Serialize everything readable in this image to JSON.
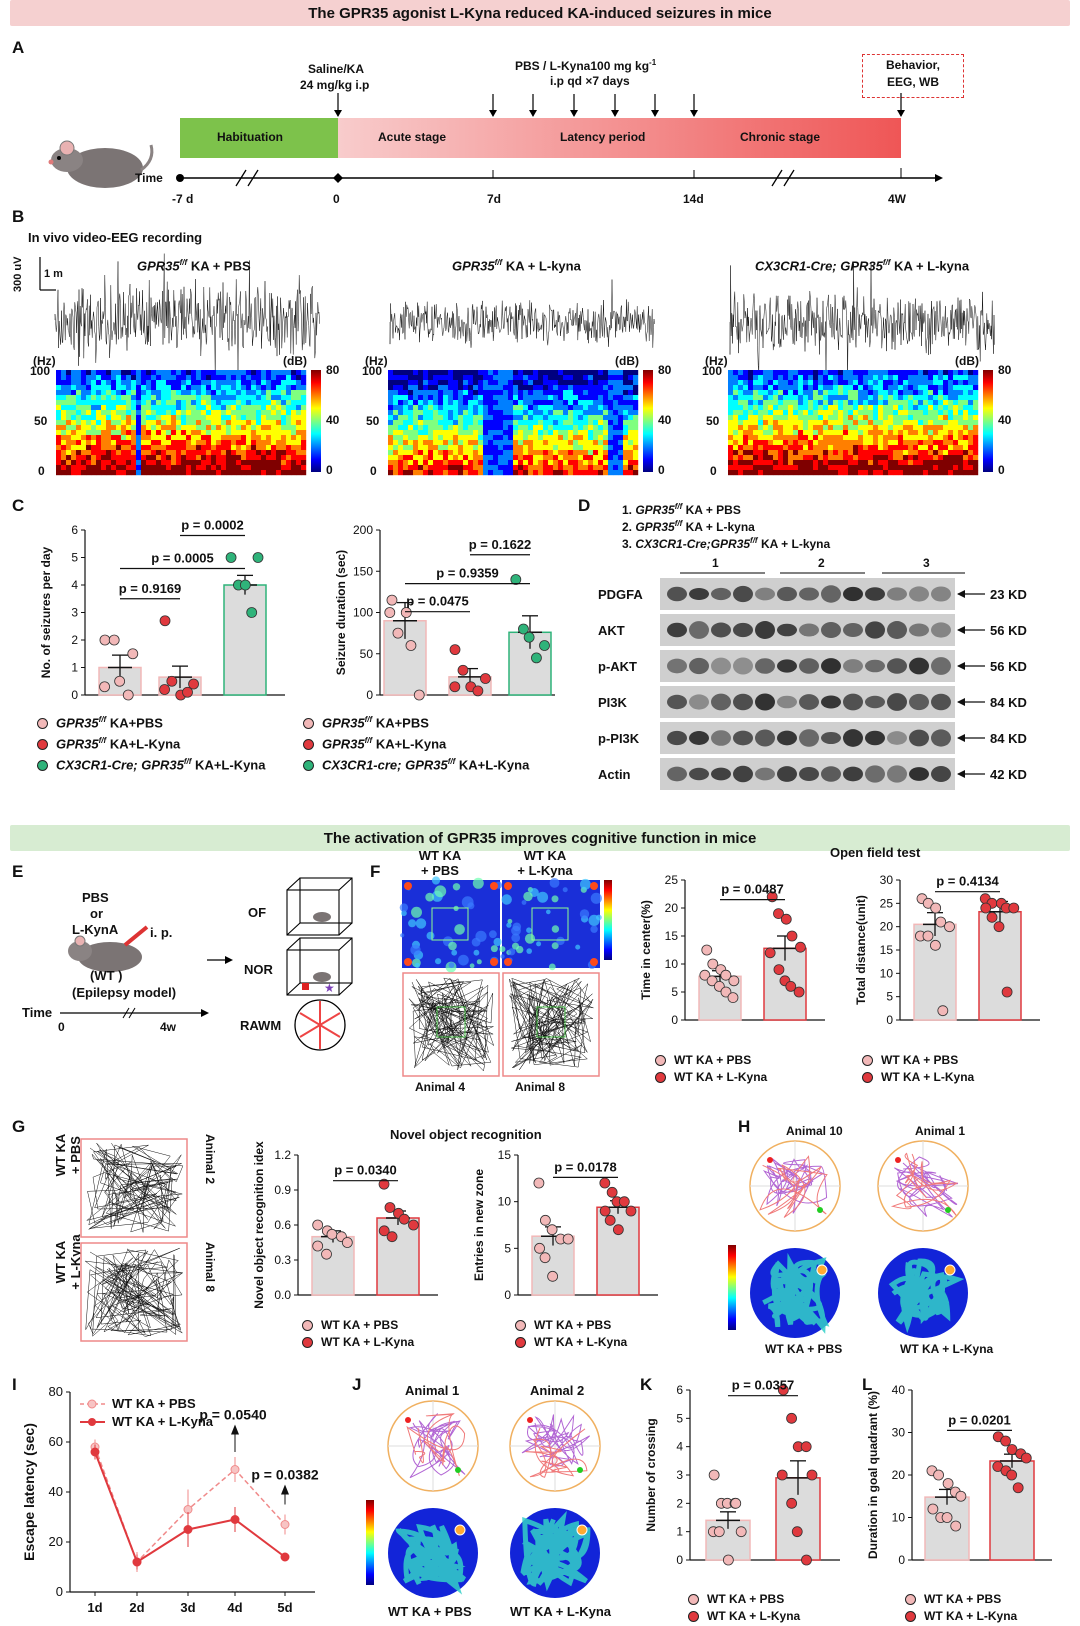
{
  "banners": {
    "top": "The GPR35 agonist L-Kyna reduced KA-induced seizures in mice",
    "middle": "The activation of GPR35 improves cognitive function in mice"
  },
  "panel_labels": [
    "A",
    "B",
    "C",
    "D",
    "E",
    "F",
    "G",
    "H",
    "I",
    "J",
    "K",
    "L"
  ],
  "panelA": {
    "saline_line1": "Saline/KA",
    "saline_line2": "24 mg/kg i.p",
    "pbs_line1": "PBS / L-Kyna100 mg kg",
    "pbs_sup": "-1",
    "pbs_line2": "i.p qd ×7 days",
    "behavior_line1": "Behavior,",
    "behavior_line2": "EEG, WB",
    "stages": [
      "Habituation",
      "Acute stage",
      "Latency period",
      "Chronic stage"
    ],
    "time_label": "Time",
    "ticks": [
      "-7 d",
      "0",
      "7d",
      "14d",
      "4W"
    ]
  },
  "panelB": {
    "title": "In vivo video-EEG recording",
    "scale_v": "300 uV",
    "scale_t": "1 m",
    "groups": [
      {
        "gene": "GPR35",
        "sup": "f/f",
        "label": " KA + PBS"
      },
      {
        "gene": "GPR35",
        "sup": "f/f",
        "label": " KA + L-kyna"
      },
      {
        "gene": "CX3CR1-Cre; GPR35",
        "sup": "f/f",
        "label": " KA + L-kyna"
      }
    ],
    "hz": "(Hz)",
    "db": "(dB)",
    "y_ticks": [
      "100",
      "50",
      "0"
    ],
    "cbar_ticks": [
      "80",
      "40",
      "0"
    ]
  },
  "panelC": {
    "left": {
      "ylabel": "No. of seizures per day",
      "p_values": [
        "p = 0.0002",
        "p = 0.0005",
        "p = 0.9169"
      ],
      "y_ticks": [
        "6",
        "5",
        "4",
        "3",
        "2",
        "1",
        "0"
      ]
    },
    "right": {
      "ylabel": "Seizure duration (sec)",
      "p_values": [
        "p = 0.1622",
        "p = 0.9359",
        "p = 0.0475"
      ],
      "y_ticks": [
        "200",
        "150",
        "100",
        "50",
        "0"
      ]
    },
    "legend": [
      {
        "gene": "GPR35",
        "sup": "f/f",
        "label": " KA+PBS"
      },
      {
        "gene": "GPR35",
        "sup": "f/f",
        "label": " KA+L-Kyna"
      },
      {
        "gene": "CX3CR1-Cre; GPR35",
        "sup": "f/f",
        "label": " KA+L-Kyna"
      }
    ],
    "legend_right": [
      {
        "gene": "GPR35",
        "sup": "f/f",
        "label": " KA+PBS"
      },
      {
        "gene": "GPR35",
        "sup": "f/f",
        "label": " KA+L-Kyna"
      },
      {
        "gene": "CX3CR1-cre; GPR35",
        "sup": "f/f",
        "label": " KA+L-Kyna"
      }
    ]
  },
  "panelD": {
    "groups": [
      {
        "prefix": "1. ",
        "gene": "GPR35",
        "sup": "f/f",
        "label": " KA + PBS"
      },
      {
        "prefix": "2. ",
        "gene": "GPR35",
        "sup": "f/f",
        "label": " KA + L-kyna"
      },
      {
        "prefix": "3. ",
        "gene": "CX3CR1-Cre;GPR35",
        "sup": "f/f",
        "label": " KA + L-kyna"
      }
    ],
    "lanes": [
      "1",
      "2",
      "3"
    ],
    "blots": [
      {
        "name": "PDGFA",
        "kd": "23 KD"
      },
      {
        "name": "AKT",
        "kd": "56 KD"
      },
      {
        "name": "p-AKT",
        "kd": "56 KD"
      },
      {
        "name": "PI3K",
        "kd": "84 KD"
      },
      {
        "name": "p-PI3K",
        "kd": "84 KD"
      },
      {
        "name": "Actin",
        "kd": "42 KD"
      }
    ]
  },
  "panelE": {
    "pbs": "PBS",
    "or": "or",
    "lkyna": "L-KynA",
    "ip": "i. p.",
    "wt": "(WT )",
    "model": "(Epilepsy model)",
    "time": "Time",
    "t0": "0",
    "t4": "4w",
    "tests": [
      "OF",
      "NOR",
      "RAWM"
    ]
  },
  "panelF": {
    "heat_labels": [
      "WT KA\n+ PBS",
      "WT KA\n+ L-Kyna"
    ],
    "heat_label1a": "WT KA",
    "heat_label1b": "+ PBS",
    "heat_label2a": "WT KA",
    "heat_label2b": "+ L-Kyna",
    "animals": [
      "Animal 4",
      "Animal 8"
    ],
    "title": "Open field test",
    "chart1": {
      "ylabel": "Time in center(%)",
      "p": "p = 0.0487",
      "y_ticks": [
        "25",
        "20",
        "15",
        "10",
        "5",
        "0"
      ]
    },
    "chart2": {
      "ylabel": "Total  distance(unit)",
      "p": "p = 0.4134",
      "y_ticks": [
        "30",
        "25",
        "20",
        "15",
        "10",
        "5",
        "0"
      ]
    },
    "legend": [
      "WT KA + PBS",
      "WT KA + L-Kyna"
    ]
  },
  "panelG": {
    "row1a": "WT KA",
    "row1b": "+ PBS",
    "row2a": "WT KA",
    "row2b": "+ L-Kyna",
    "animals": [
      "Animal 2",
      "Animal 8"
    ],
    "title": "Novel object recognition",
    "chart1": {
      "ylabel": "Novel object recognition idex",
      "p": "p = 0.0340",
      "y_ticks": [
        "1.2",
        "0.9",
        "0.6",
        "0.3",
        "0.0"
      ]
    },
    "chart2": {
      "ylabel": "Entries in new zone",
      "p": "p = 0.0178",
      "y_ticks": [
        "15",
        "10",
        "5",
        "0"
      ]
    },
    "legend": [
      "WT  KA + PBS",
      "WT  KA + L-Kyna"
    ]
  },
  "panelH": {
    "animals": [
      "Animal 10",
      "Animal 1"
    ],
    "labels": [
      "WT KA  + PBS",
      "WT KA  + L-Kyna"
    ]
  },
  "panelI": {
    "ylabel": "Escape latency (sec)",
    "legend": [
      "WT KA + PBS",
      "WT KA + L-Kyna"
    ],
    "p_values": [
      "p = 0.0540",
      "p = 0.0382"
    ],
    "y_ticks": [
      "80",
      "60",
      "40",
      "20",
      "0"
    ],
    "x_ticks": [
      "1d",
      "2d",
      "3d",
      "4d",
      "5d"
    ]
  },
  "panelJ": {
    "animals": [
      "Animal 1",
      "Animal 2"
    ],
    "labels": [
      "WT KA  + PBS",
      "WT KA  + L-Kyna"
    ]
  },
  "panelK": {
    "ylabel": "Number of crossing",
    "p": "p = 0.0357",
    "y_ticks": [
      "6",
      "5",
      "4",
      "3",
      "2",
      "1",
      "0"
    ],
    "legend": [
      "WT KA + PBS",
      "WT KA + L-Kyna"
    ]
  },
  "panelL": {
    "ylabel": "Duration in goal quadrant (%)",
    "p": "p = 0.0201",
    "y_ticks": [
      "40",
      "30",
      "20",
      "10",
      "0"
    ],
    "legend": [
      "WT KA + PBS",
      "WT KA + L-Kyna"
    ]
  },
  "colors": {
    "pbs": "#f2b8b8",
    "kyna": "#e0393e",
    "cx3": "#2fb37a",
    "bar_fill": "#dcdcdc",
    "habituation": "#7dc24b"
  },
  "chart_data": [
    {
      "type": "bar",
      "title": "",
      "ylabel": "No. of seizures per day",
      "categories": [
        "GPR35f/f KA+PBS",
        "GPR35f/f KA+L-Kyna",
        "CX3CR1-Cre; GPR35f/f KA+L-Kyna"
      ],
      "values": [
        1.0,
        0.65,
        4.0
      ],
      "ylim": [
        0,
        6
      ]
    },
    {
      "type": "bar",
      "title": "",
      "ylabel": "Seizure duration (sec)",
      "categories": [
        "GPR35f/f KA+PBS",
        "GPR35f/f KA+L-Kyna",
        "CX3CR1-cre; GPR35f/f KA+L-Kyna"
      ],
      "values": [
        90,
        22,
        76
      ],
      "ylim": [
        0,
        200
      ]
    },
    {
      "type": "bar",
      "title": "Open field test",
      "ylabel": "Time in center(%)",
      "categories": [
        "WT KA + PBS",
        "WT KA + L-Kyna"
      ],
      "values": [
        7.8,
        12.8
      ],
      "ylim": [
        0,
        25
      ]
    },
    {
      "type": "bar",
      "title": "Open field test",
      "ylabel": "Total  distance(unit)",
      "categories": [
        "WT KA + PBS",
        "WT KA + L-Kyna"
      ],
      "values": [
        20.5,
        23.2
      ],
      "ylim": [
        0,
        30
      ]
    },
    {
      "type": "bar",
      "title": "Novel object recognition",
      "ylabel": "Novel object recognition idex",
      "categories": [
        "WT  KA + PBS",
        "WT  KA + L-Kyna"
      ],
      "values": [
        0.5,
        0.66
      ],
      "ylim": [
        0,
        1.2
      ]
    },
    {
      "type": "bar",
      "title": "Novel object recognition",
      "ylabel": "Entries in new zone",
      "categories": [
        "WT  KA + PBS",
        "WT  KA + L-Kyna"
      ],
      "values": [
        6.3,
        9.4
      ],
      "ylim": [
        0,
        15
      ]
    },
    {
      "type": "line",
      "title": "",
      "ylabel": "Escape latency (sec)",
      "x": [
        "1d",
        "2d",
        "3d",
        "4d",
        "5d"
      ],
      "series": [
        {
          "name": "WT KA + PBS",
          "values": [
            58,
            12,
            33,
            49,
            27
          ]
        },
        {
          "name": "WT KA + L-Kyna",
          "values": [
            56,
            12,
            25,
            29,
            14
          ]
        }
      ],
      "ylim": [
        0,
        80
      ]
    },
    {
      "type": "bar",
      "title": "",
      "ylabel": "Number of crossing",
      "categories": [
        "WT KA + PBS",
        "WT KA + L-Kyna"
      ],
      "values": [
        1.4,
        2.9
      ],
      "ylim": [
        0,
        6
      ]
    },
    {
      "type": "bar",
      "title": "",
      "ylabel": "Duration in goal quadrant (%)",
      "categories": [
        "WT KA + PBS",
        "WT KA + L-Kyna"
      ],
      "values": [
        14.8,
        23.3
      ],
      "ylim": [
        0,
        40
      ]
    }
  ]
}
